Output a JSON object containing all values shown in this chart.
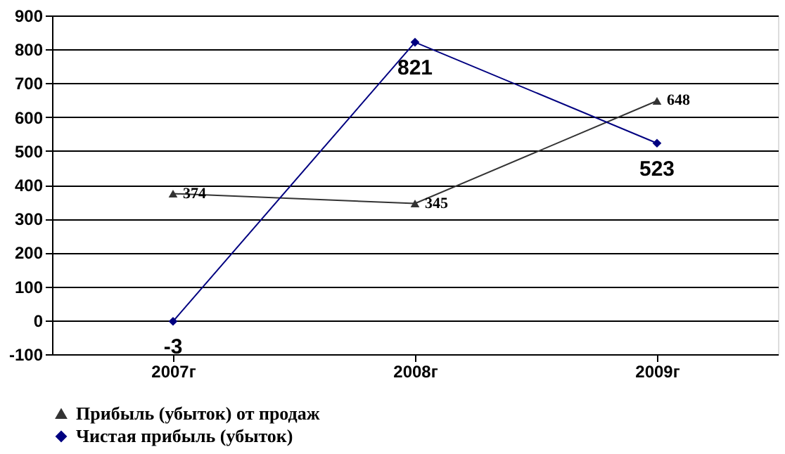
{
  "chart_data": {
    "type": "line",
    "categories": [
      "2007г",
      "2008г",
      "2009г"
    ],
    "series": [
      {
        "name": "Прибыль (убыток) от продаж",
        "color": "#333333",
        "marker": "triangle",
        "values": [
          374,
          345,
          648
        ]
      },
      {
        "name": "Чистая прибыль (убыток)",
        "color": "#000080",
        "marker": "diamond",
        "values": [
          -3,
          821,
          523
        ]
      }
    ],
    "ylim": [
      -100,
      900
    ],
    "yticks": [
      -100,
      0,
      100,
      200,
      300,
      400,
      500,
      600,
      700,
      800,
      900
    ],
    "grid": "y",
    "legend": "bottom",
    "data_labels": true
  }
}
